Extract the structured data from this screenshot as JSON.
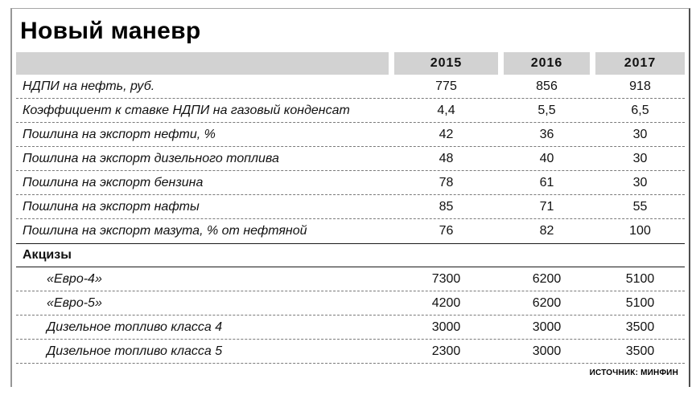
{
  "title": "Новый маневр",
  "source": "ИСТОЧНИК: МИНФИН",
  "colors": {
    "header_bg": "#d2d2d2",
    "text": "#111111",
    "dash_line": "#7a7a7a",
    "section_line": "#1a1a1a"
  },
  "chart_data": {
    "type": "table",
    "title": "Новый маневр",
    "columns": [
      "2015",
      "2016",
      "2017"
    ],
    "rows": [
      {
        "label": "НДПИ на нефть, руб.",
        "values": [
          "775",
          "856",
          "918"
        ]
      },
      {
        "label": "Коэффициент к ставке НДПИ на газовый конденсат",
        "values": [
          "4,4",
          "5,5",
          "6,5"
        ]
      },
      {
        "label": "Пошлина на экспорт нефти, %",
        "values": [
          "42",
          "36",
          "30"
        ]
      },
      {
        "label": "Пошлина на экспорт дизельного топлива",
        "values": [
          "48",
          "40",
          "30"
        ]
      },
      {
        "label": "Пошлина на экспорт бензина",
        "values": [
          "78",
          "61",
          "30"
        ]
      },
      {
        "label": "Пошлина на экспорт нафты",
        "values": [
          "85",
          "71",
          "55"
        ]
      },
      {
        "label": "Пошлина на экспорт мазута, % от нефтяной",
        "values": [
          "76",
          "82",
          "100"
        ]
      },
      {
        "label": "Акцизы",
        "section": true
      },
      {
        "label": "«Евро-4»",
        "values": [
          "7300",
          "6200",
          "5100"
        ],
        "indent": true
      },
      {
        "label": "«Евро-5»",
        "values": [
          "4200",
          "6200",
          "5100"
        ],
        "indent": true
      },
      {
        "label": "Дизельное топливо класса 4",
        "values": [
          "3000",
          "3000",
          "3500"
        ],
        "indent": true
      },
      {
        "label": "Дизельное топливо класса 5",
        "values": [
          "2300",
          "3000",
          "3500"
        ],
        "indent": true
      }
    ],
    "source": "ИСТОЧНИК: МИНФИН"
  }
}
